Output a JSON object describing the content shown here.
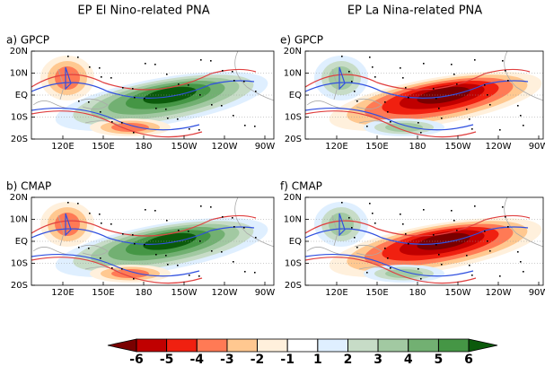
{
  "columns": [
    {
      "title": "EP El Nino-related PNA"
    },
    {
      "title": "EP La Nina-related PNA"
    }
  ],
  "panels": [
    {
      "label": "a) GPCP"
    },
    {
      "label": "b) CMAP"
    },
    {
      "label": "e) GPCP"
    },
    {
      "label": "f) CMAP"
    }
  ],
  "lat_labels": [
    "20N",
    "10N",
    "EQ",
    "10S",
    "20S"
  ],
  "lon_labels": [
    "120E",
    "150E",
    "180",
    "150W",
    "120W",
    "90W"
  ],
  "colorbar": {
    "levels": [
      -6,
      -5,
      -4,
      -3,
      -2,
      -1,
      1,
      2,
      3,
      4,
      5,
      6
    ],
    "colors": [
      "#7a0000",
      "#c00000",
      "#f02010",
      "#ff7a55",
      "#ffc890",
      "#fff0dc",
      "#ffffff",
      "#dfefff",
      "#c7dcc7",
      "#a2c9a2",
      "#72b072",
      "#459645",
      "#0b5a0b"
    ]
  }
}
